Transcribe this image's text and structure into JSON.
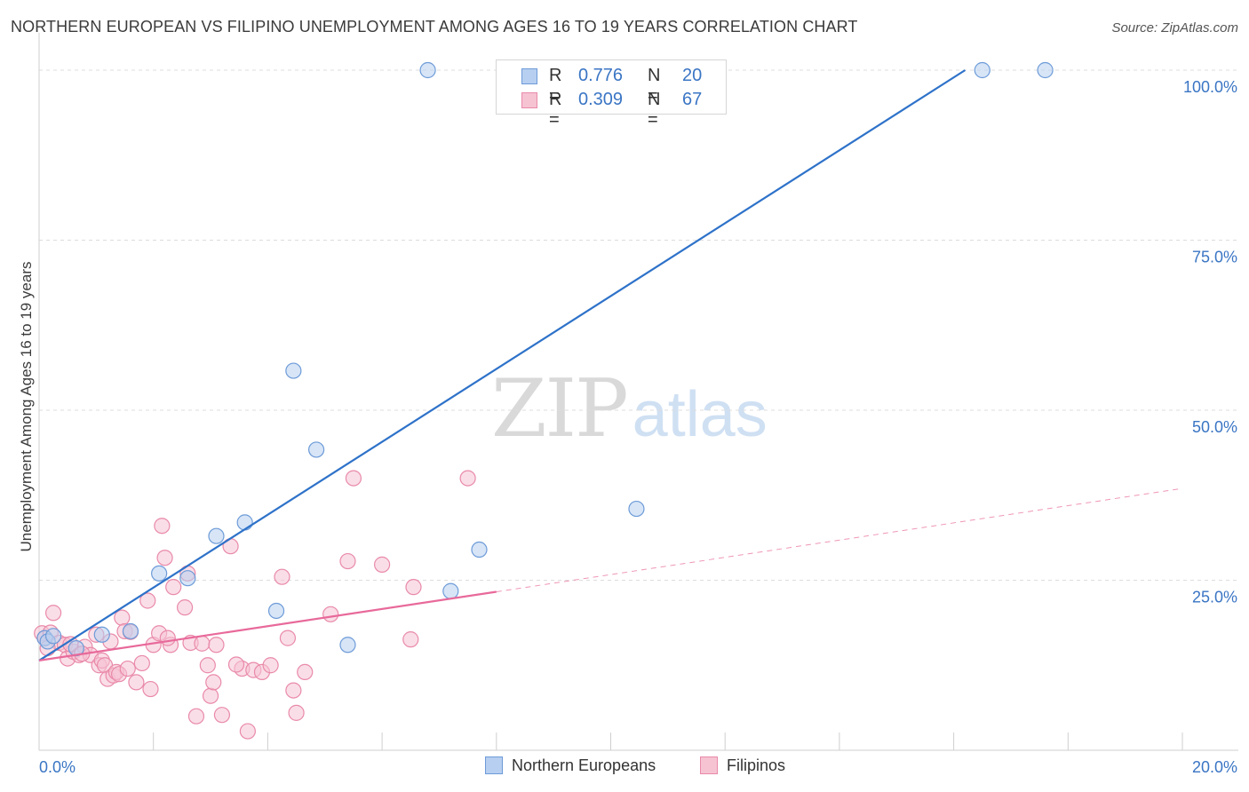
{
  "title": "NORTHERN EUROPEAN VS FILIPINO UNEMPLOYMENT AMONG AGES 16 TO 19 YEARS CORRELATION CHART",
  "source": "Source: ZipAtlas.com",
  "watermark": {
    "zip": "ZIP",
    "atlas": "atlas"
  },
  "colors": {
    "blue_fill": "#b7cff0",
    "blue_stroke": "#6d9bd8",
    "blue_line": "#2e72c9",
    "pink_fill": "#f6c3d3",
    "pink_stroke": "#e98aa9",
    "pink_line": "#e8699a",
    "tick_text": "#3a75c4",
    "grid": "#dddddd"
  },
  "legend_top": [
    {
      "r_label": "R =",
      "r_value": "0.776",
      "n_label": "N =",
      "n_value": "20"
    },
    {
      "r_label": "R =",
      "r_value": "0.309",
      "n_label": "N =",
      "n_value": "67"
    }
  ],
  "legend_bottom": [
    "Northern Europeans",
    "Filipinos"
  ],
  "chart_data": {
    "type": "scatter",
    "ylabel": "Unemployment Among Ages 16 to 19 years",
    "xlim": [
      0,
      20
    ],
    "ylim": [
      0,
      105
    ],
    "x_ticks": [
      {
        "value": 0,
        "label": "0.0%"
      },
      {
        "value": 20,
        "label": "20.0%"
      }
    ],
    "y_ticks": [
      {
        "value": 25,
        "label": "25.0%"
      },
      {
        "value": 50,
        "label": "50.0%"
      },
      {
        "value": 75,
        "label": "75.0%"
      },
      {
        "value": 100,
        "label": "100.0%"
      }
    ],
    "grid": "horizontal dashed",
    "series": [
      {
        "name": "Northern Europeans",
        "points": [
          [
            0.1,
            16.5
          ],
          [
            0.15,
            16.0
          ],
          [
            0.25,
            16.8
          ],
          [
            0.65,
            15.0
          ],
          [
            1.1,
            17.0
          ],
          [
            1.6,
            17.5
          ],
          [
            2.1,
            26.0
          ],
          [
            2.6,
            25.3
          ],
          [
            3.1,
            31.5
          ],
          [
            3.6,
            33.5
          ],
          [
            4.15,
            20.5
          ],
          [
            4.45,
            55.8
          ],
          [
            4.85,
            44.2
          ],
          [
            5.4,
            15.5
          ],
          [
            6.8,
            100.0
          ],
          [
            7.2,
            23.4
          ],
          [
            7.7,
            29.5
          ],
          [
            10.45,
            35.5
          ],
          [
            16.5,
            100.0
          ],
          [
            17.6,
            100.0
          ]
        ],
        "trend": {
          "x0": 0,
          "y0": 13.2,
          "x1": 16.2,
          "y1": 100.0,
          "dashed_to": null
        }
      },
      {
        "name": "Filipinos",
        "points": [
          [
            0.05,
            17.2
          ],
          [
            0.1,
            16.5
          ],
          [
            0.2,
            17.3
          ],
          [
            0.25,
            20.2
          ],
          [
            0.35,
            15.8
          ],
          [
            0.45,
            15.5
          ],
          [
            0.5,
            13.5
          ],
          [
            0.6,
            14.5
          ],
          [
            0.7,
            14.0
          ],
          [
            0.8,
            15.2
          ],
          [
            0.9,
            14.0
          ],
          [
            1.0,
            17.0
          ],
          [
            1.05,
            12.5
          ],
          [
            1.1,
            13.2
          ],
          [
            1.15,
            12.5
          ],
          [
            1.2,
            10.5
          ],
          [
            1.25,
            16.0
          ],
          [
            1.3,
            11.0
          ],
          [
            1.35,
            11.5
          ],
          [
            1.45,
            19.5
          ],
          [
            1.5,
            17.5
          ],
          [
            1.6,
            17.4
          ],
          [
            1.7,
            10.0
          ],
          [
            1.8,
            12.8
          ],
          [
            1.9,
            22.0
          ],
          [
            1.95,
            9.0
          ],
          [
            2.0,
            15.5
          ],
          [
            2.1,
            17.2
          ],
          [
            2.15,
            33.0
          ],
          [
            2.2,
            28.3
          ],
          [
            2.3,
            15.5
          ],
          [
            2.35,
            24.0
          ],
          [
            2.55,
            21.0
          ],
          [
            2.6,
            26.0
          ],
          [
            2.65,
            15.8
          ],
          [
            2.75,
            5.0
          ],
          [
            2.85,
            15.7
          ],
          [
            2.95,
            12.5
          ],
          [
            3.0,
            8.0
          ],
          [
            3.05,
            10.0
          ],
          [
            3.1,
            15.5
          ],
          [
            3.2,
            5.2
          ],
          [
            3.35,
            30.0
          ],
          [
            3.55,
            12.0
          ],
          [
            3.65,
            2.8
          ],
          [
            3.75,
            11.8
          ],
          [
            3.9,
            11.5
          ],
          [
            4.05,
            12.5
          ],
          [
            4.25,
            25.5
          ],
          [
            4.35,
            16.5
          ],
          [
            4.45,
            8.8
          ],
          [
            4.5,
            5.5
          ],
          [
            4.65,
            11.5
          ],
          [
            5.1,
            20.0
          ],
          [
            5.4,
            27.8
          ],
          [
            5.5,
            40.0
          ],
          [
            6.0,
            27.3
          ],
          [
            6.5,
            16.3
          ],
          [
            6.55,
            24.0
          ],
          [
            7.5,
            40.0
          ],
          [
            0.15,
            15.0
          ],
          [
            0.55,
            15.6
          ],
          [
            0.75,
            14.2
          ],
          [
            1.4,
            11.2
          ],
          [
            1.55,
            12.0
          ],
          [
            2.25,
            16.5
          ],
          [
            3.45,
            12.6
          ]
        ],
        "trend": {
          "x0": 0,
          "y0": 13.2,
          "x1": 8.0,
          "y1": 23.3,
          "dashed_to": {
            "x": 20,
            "y": 38.5
          }
        }
      }
    ]
  }
}
